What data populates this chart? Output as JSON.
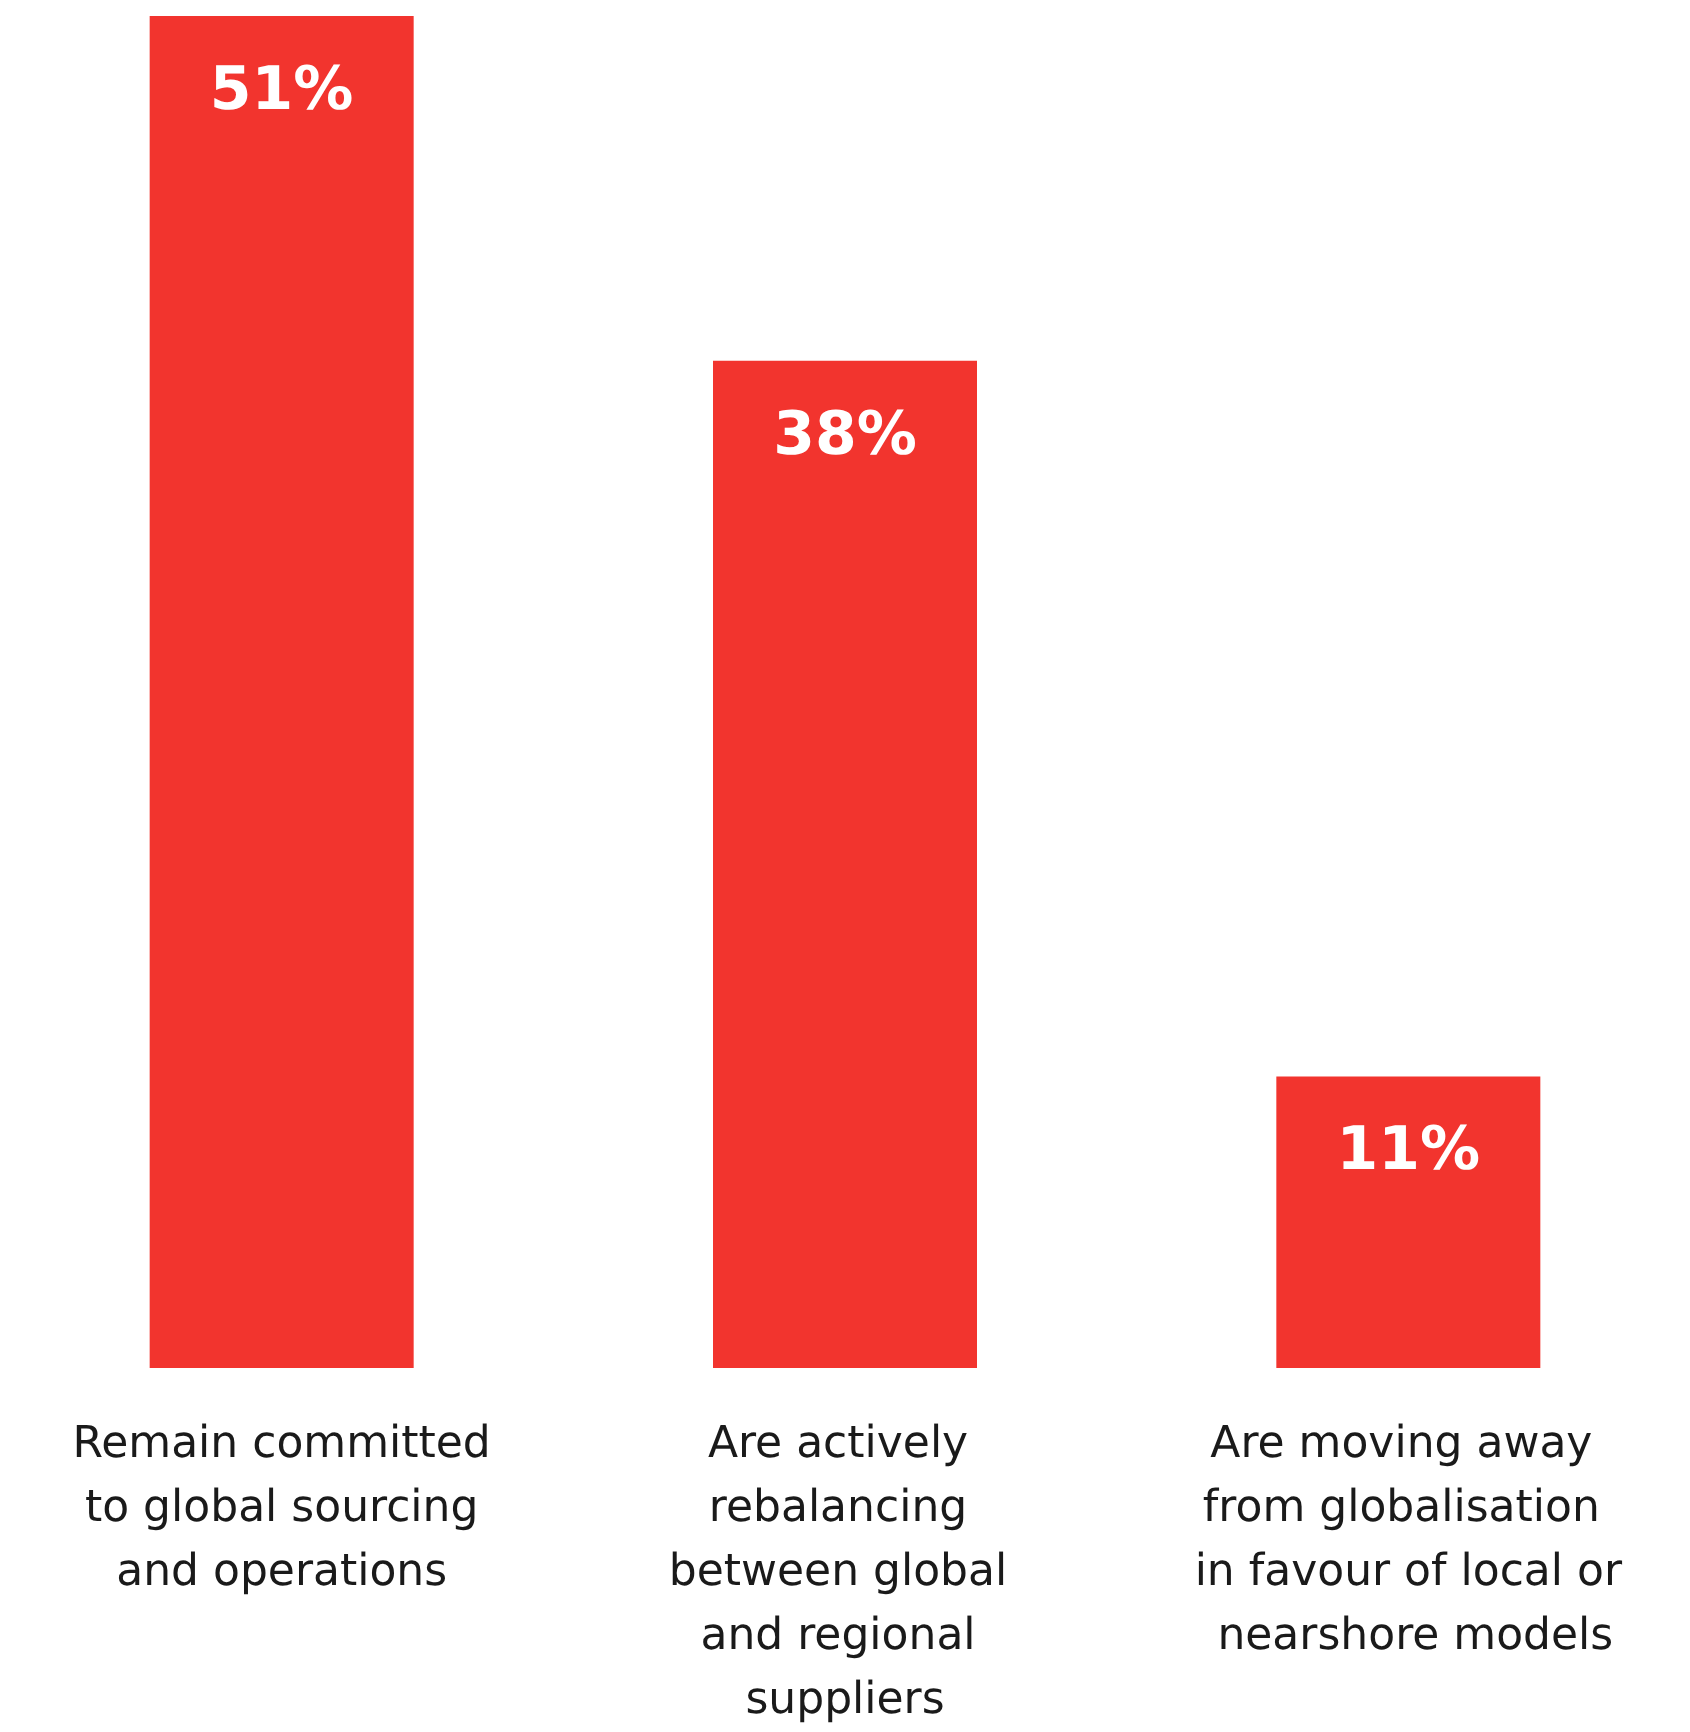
{
  "chart_data": {
    "type": "bar",
    "categories": [
      "Remain committed to global sourcing and operations",
      "Are actively rebalancing between global and regional suppliers",
      "Are moving away from globalisation in favour of local or nearshore models"
    ],
    "values": [
      51,
      38,
      11
    ],
    "color": "#f2342e",
    "value_labels": [
      "51%",
      "38%",
      "11%"
    ]
  }
}
